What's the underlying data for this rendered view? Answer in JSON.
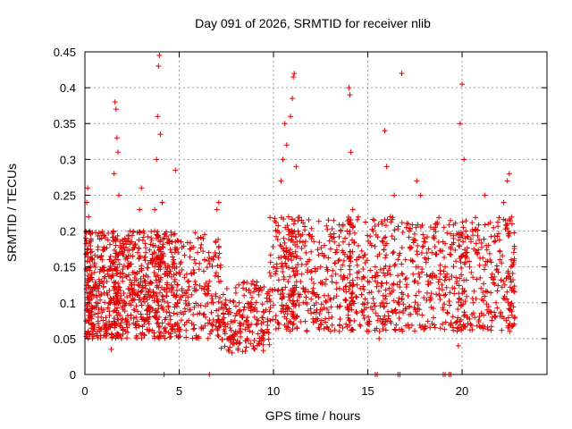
{
  "chart_data": {
    "type": "scatter",
    "title": "Day 091 of 2026, SRMTID for receiver nlib",
    "xlabel": "GPS time / hours",
    "ylabel": "SRMTID / TECUs",
    "xlim": [
      0,
      24.5
    ],
    "ylim": [
      0,
      0.45
    ],
    "xticks": [
      0,
      5,
      10,
      15,
      20
    ],
    "xtick_labels": [
      "0",
      "5",
      "10",
      "15",
      "20"
    ],
    "yticks": [
      0,
      0.05,
      0.1,
      0.15,
      0.2,
      0.25,
      0.3,
      0.35,
      0.4,
      0.45
    ],
    "ytick_labels": [
      "0",
      "0.05",
      "0.1",
      "0.15",
      "0.2",
      "0.25",
      "0.3",
      "0.35",
      "0.4",
      "0.45"
    ],
    "grid": true,
    "marker": "plus",
    "color": "#e00000",
    "series": [
      {
        "name": "SRMTID",
        "points": [
          [
            0.05,
            0.19
          ],
          [
            0.1,
            0.24
          ],
          [
            0.15,
            0.26
          ],
          [
            0.2,
            0.22
          ],
          [
            0.25,
            0.2
          ],
          [
            0.3,
            0.17
          ],
          [
            0.35,
            0.14
          ],
          [
            0.4,
            0.16
          ],
          [
            0.5,
            0.12
          ],
          [
            0.6,
            0.1
          ],
          [
            0.7,
            0.08
          ],
          [
            0.8,
            0.11
          ],
          [
            0.9,
            0.13
          ],
          [
            1.0,
            0.09
          ],
          [
            1.1,
            0.06
          ],
          [
            1.2,
            0.14
          ],
          [
            1.3,
            0.1
          ],
          [
            1.4,
            0.035
          ],
          [
            1.5,
            0.2
          ],
          [
            1.55,
            0.28
          ],
          [
            1.6,
            0.38
          ],
          [
            1.65,
            0.37
          ],
          [
            1.7,
            0.33
          ],
          [
            1.75,
            0.31
          ],
          [
            1.8,
            0.25
          ],
          [
            1.9,
            0.18
          ],
          [
            2.0,
            0.13
          ],
          [
            2.1,
            0.1
          ],
          [
            2.2,
            0.07
          ],
          [
            2.3,
            0.15
          ],
          [
            2.4,
            0.2
          ],
          [
            2.5,
            0.12
          ],
          [
            2.6,
            0.09
          ],
          [
            2.7,
            0.14
          ],
          [
            2.8,
            0.17
          ],
          [
            2.9,
            0.23
          ],
          [
            3.0,
            0.26
          ],
          [
            3.1,
            0.2
          ],
          [
            3.2,
            0.13
          ],
          [
            3.3,
            0.09
          ],
          [
            3.4,
            0.06
          ],
          [
            3.5,
            0.11
          ],
          [
            3.6,
            0.18
          ],
          [
            3.7,
            0.23
          ],
          [
            3.8,
            0.3
          ],
          [
            3.85,
            0.36
          ],
          [
            3.9,
            0.43
          ],
          [
            3.95,
            0.445
          ],
          [
            4.0,
            0.335
          ],
          [
            4.1,
            0.24
          ],
          [
            4.2,
            0.19
          ],
          [
            4.3,
            0.14
          ],
          [
            4.4,
            0.1
          ],
          [
            4.5,
            0.07
          ],
          [
            4.6,
            0.12
          ],
          [
            4.7,
            0.16
          ],
          [
            4.8,
            0.285
          ],
          [
            4.9,
            0.1
          ],
          [
            5.0,
            0.06
          ],
          [
            5.2,
            0.11
          ],
          [
            5.4,
            0.14
          ],
          [
            5.6,
            0.09
          ],
          [
            5.8,
            0.16
          ],
          [
            6.0,
            0.19
          ],
          [
            6.2,
            0.12
          ],
          [
            6.4,
            0.08
          ],
          [
            6.6,
            0.13
          ],
          [
            6.8,
            0.1
          ],
          [
            7.0,
            0.23
          ],
          [
            7.1,
            0.24
          ],
          [
            7.2,
            0.13
          ],
          [
            7.4,
            0.07
          ],
          [
            7.6,
            0.05
          ],
          [
            7.8,
            0.03
          ],
          [
            8.0,
            0.06
          ],
          [
            8.2,
            0.09
          ],
          [
            8.4,
            0.07
          ],
          [
            8.6,
            0.05
          ],
          [
            8.8,
            0.1
          ],
          [
            9.0,
            0.08
          ],
          [
            9.2,
            0.12
          ],
          [
            9.4,
            0.06
          ],
          [
            9.6,
            0.09
          ],
          [
            9.8,
            0.11
          ],
          [
            10.0,
            0.15
          ],
          [
            10.2,
            0.2
          ],
          [
            10.4,
            0.27
          ],
          [
            10.5,
            0.3
          ],
          [
            10.6,
            0.35
          ],
          [
            10.7,
            0.32
          ],
          [
            10.8,
            0.22
          ],
          [
            10.9,
            0.36
          ],
          [
            11.0,
            0.385
          ],
          [
            11.05,
            0.415
          ],
          [
            11.1,
            0.42
          ],
          [
            11.2,
            0.29
          ],
          [
            11.3,
            0.2
          ],
          [
            11.5,
            0.14
          ],
          [
            11.7,
            0.1
          ],
          [
            11.9,
            0.16
          ],
          [
            12.1,
            0.12
          ],
          [
            12.3,
            0.09
          ],
          [
            12.5,
            0.15
          ],
          [
            12.7,
            0.18
          ],
          [
            12.9,
            0.11
          ],
          [
            13.1,
            0.08
          ],
          [
            13.3,
            0.14
          ],
          [
            13.5,
            0.12
          ],
          [
            13.7,
            0.17
          ],
          [
            13.9,
            0.2
          ],
          [
            14.0,
            0.4
          ],
          [
            14.05,
            0.39
          ],
          [
            14.1,
            0.31
          ],
          [
            14.2,
            0.23
          ],
          [
            14.4,
            0.16
          ],
          [
            14.6,
            0.12
          ],
          [
            14.8,
            0.09
          ],
          [
            15.0,
            0.13
          ],
          [
            15.2,
            0.18
          ],
          [
            15.4,
            0.15
          ],
          [
            15.6,
            0.05
          ],
          [
            15.8,
            0.1
          ],
          [
            15.9,
            0.34
          ],
          [
            16.0,
            0.29
          ],
          [
            16.2,
            0.22
          ],
          [
            16.4,
            0.25
          ],
          [
            16.6,
            0.1
          ],
          [
            16.8,
            0.42
          ],
          [
            17.0,
            0.16
          ],
          [
            17.2,
            0.2
          ],
          [
            17.4,
            0.14
          ],
          [
            17.6,
            0.27
          ],
          [
            17.8,
            0.25
          ],
          [
            18.0,
            0.19
          ],
          [
            18.2,
            0.13
          ],
          [
            18.4,
            0.17
          ],
          [
            18.6,
            0.21
          ],
          [
            18.8,
            0.11
          ],
          [
            19.0,
            0.09
          ],
          [
            19.2,
            0.14
          ],
          [
            19.4,
            0.07
          ],
          [
            19.6,
            0.12
          ],
          [
            19.8,
            0.04
          ],
          [
            19.9,
            0.35
          ],
          [
            20.0,
            0.405
          ],
          [
            20.1,
            0.3
          ],
          [
            20.2,
            0.2
          ],
          [
            20.4,
            0.15
          ],
          [
            20.6,
            0.1
          ],
          [
            20.8,
            0.17
          ],
          [
            21.0,
            0.12
          ],
          [
            21.2,
            0.25
          ],
          [
            21.4,
            0.18
          ],
          [
            21.6,
            0.14
          ],
          [
            21.8,
            0.1
          ],
          [
            22.0,
            0.16
          ],
          [
            22.2,
            0.24
          ],
          [
            22.4,
            0.27
          ],
          [
            22.5,
            0.28
          ],
          [
            22.6,
            0.15
          ],
          [
            22.7,
            0.12
          ],
          [
            22.8,
            0.08
          ]
        ]
      }
    ],
    "zero_points_x": [
      4.2,
      6.6,
      15.4,
      15.5,
      16.6,
      16.7,
      19.0,
      19.1,
      19.3,
      19.4
    ]
  }
}
